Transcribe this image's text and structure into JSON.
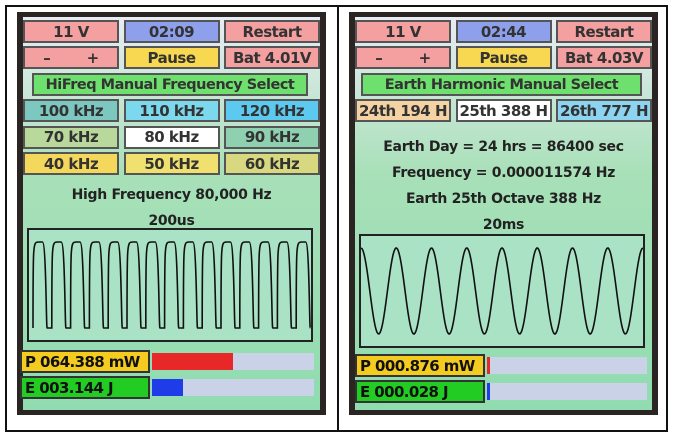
{
  "screens": [
    {
      "voltage": "11 V",
      "timer": "02:09",
      "restart_label": "Restart",
      "minus_label": "–",
      "plus_label": "+",
      "pause_label": "Pause",
      "battery": "Bat 4.01V",
      "mode_title": "HiFreq Manual Frequency Select",
      "options": [
        {
          "label": "100 kHz",
          "color": "#7cc8c0"
        },
        {
          "label": "110 kHz",
          "color": "#7cd8ec"
        },
        {
          "label": "120 kHz",
          "color": "#5ccaf0"
        },
        {
          "label": "70 kHz",
          "color": "#b8d89c"
        },
        {
          "label": "80 kHz",
          "color": "#ffffff",
          "selected": true
        },
        {
          "label": "90 kHz",
          "color": "#8ed0b0"
        },
        {
          "label": "40 kHz",
          "color": "#f4d85c"
        },
        {
          "label": "50 kHz",
          "color": "#f0e070"
        },
        {
          "label": "60 kHz",
          "color": "#d8d880"
        }
      ],
      "info_lines": [
        "High Frequency 80,000 Hz"
      ],
      "timebase": "200us",
      "waveform": {
        "shape": "square",
        "cycles": 15
      },
      "power": "P 064.388 mW",
      "energy": "E 003.144 J",
      "power_level": 0.5,
      "energy_level": 0.19
    },
    {
      "voltage": "11 V",
      "timer": "02:44",
      "restart_label": "Restart",
      "minus_label": "–",
      "plus_label": "+",
      "pause_label": "Pause",
      "battery": "Bat 4.03V",
      "mode_title": "Earth Harmonic Manual Select",
      "options": [
        {
          "label": "24th 194 H",
          "color": "#f4d2a4"
        },
        {
          "label": "25th 388 H",
          "color": "#ffffff",
          "selected": true
        },
        {
          "label": "26th 777 H",
          "color": "#8cd4f0"
        }
      ],
      "info_lines": [
        "Earth Day = 24 hrs = 86400 sec",
        "Frequency = 0.000011574 Hz",
        "Earth 25th Octave 388 Hz"
      ],
      "timebase": "20ms",
      "waveform": {
        "shape": "sine",
        "cycles": 8
      },
      "power": "P 000.876 mW",
      "energy": "E 000.028 J",
      "power_level": 0.02,
      "energy_level": 0.02
    }
  ],
  "colors": {
    "voltage": "#f4a0a0",
    "timer": "#8ea0ec",
    "restart": "#f4a0a0",
    "pause": "#f8d850",
    "title": "#6ee06e",
    "power": "#f4cc20",
    "energy": "#22cc22",
    "power_bar": "#e82828",
    "energy_bar": "#1e3ce8"
  }
}
